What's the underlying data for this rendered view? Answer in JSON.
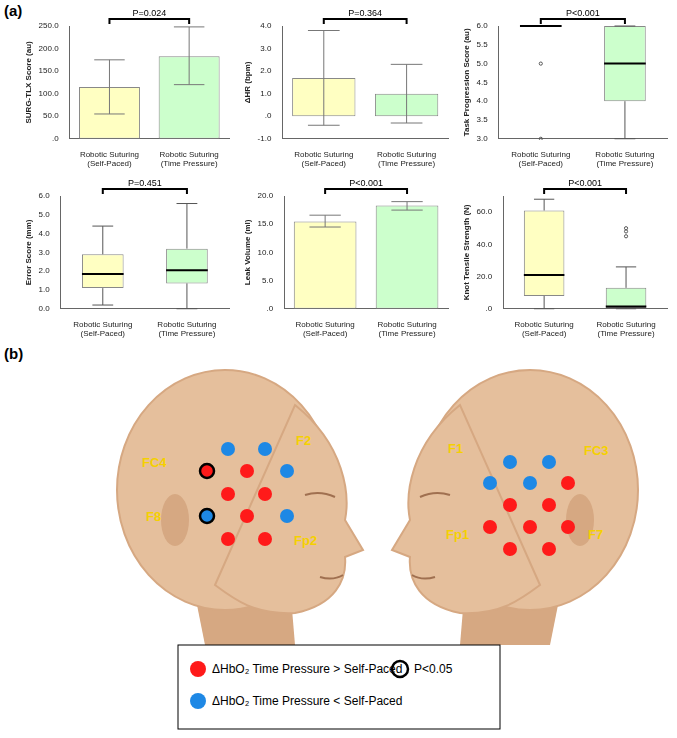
{
  "panel_labels": [
    "(a)",
    "(b)"
  ],
  "chart_data": [
    {
      "type": "bar",
      "y_label": "SURG-TLX Score (au)",
      "categories": [
        [
          "Robotic Suturing",
          "(Self-Paced)"
        ],
        [
          "Robotic Suturing",
          "(Time Pressure)"
        ]
      ],
      "values": [
        115,
        183
      ],
      "error_low": [
        55,
        120
      ],
      "error_high": [
        175,
        248
      ],
      "colors": [
        "#ffffc2",
        "#ccffcc"
      ],
      "ylim": [
        0,
        250
      ],
      "yticks": [
        {
          "value": 0,
          "label": ".0"
        },
        {
          "value": 50,
          "label": "50.0"
        },
        {
          "value": 100,
          "label": "100.0"
        },
        {
          "value": 150,
          "label": "150.0"
        },
        {
          "value": 200,
          "label": "200.0"
        },
        {
          "value": 250,
          "label": "250.0"
        }
      ],
      "annotation": "P=0.024",
      "grid": false
    },
    {
      "type": "bar",
      "y_label": "ΔHR (bpm)",
      "categories": [
        [
          "Robotic Suturing",
          "(Self-Paced)"
        ],
        [
          "Robotic Suturing",
          "(Time Pressure)"
        ]
      ],
      "values": [
        1.7,
        1.0
      ],
      "error_low": [
        -0.4,
        -0.3
      ],
      "error_high": [
        3.8,
        2.3
      ],
      "colors": [
        "#ffffc2",
        "#ccffcc"
      ],
      "ylim": [
        -1,
        4
      ],
      "yticks": [
        {
          "value": -1,
          "label": "-1.0"
        },
        {
          "value": 0,
          "label": ".0"
        },
        {
          "value": 1,
          "label": "1.0"
        },
        {
          "value": 2,
          "label": "2.0"
        },
        {
          "value": 3,
          "label": "3.0"
        },
        {
          "value": 4,
          "label": "4.0"
        }
      ],
      "annotation": "P=0.364",
      "grid": false
    },
    {
      "type": "box",
      "y_label": "Task Progression Score (au)",
      "categories": [
        [
          "Robotic Suturing",
          "(Self-Paced)"
        ],
        [
          "Robotic Suturing",
          "(Time Pressure)"
        ]
      ],
      "boxes": [
        {
          "min": 6,
          "q1": 6,
          "median": 6,
          "q3": 6,
          "max": 6,
          "outliers": [
            5,
            3
          ]
        },
        {
          "min": 3,
          "q1": 4,
          "median": 5,
          "q3": 6,
          "max": 6,
          "outliers": []
        }
      ],
      "colors": [
        "#ffffc2",
        "#ccffcc"
      ],
      "ylim": [
        3,
        6
      ],
      "yticks": [
        {
          "value": 3,
          "label": "3.0"
        },
        {
          "value": 3.5,
          "label": "3.5"
        },
        {
          "value": 4,
          "label": "4.0"
        },
        {
          "value": 4.5,
          "label": "4.5"
        },
        {
          "value": 5,
          "label": "5.0"
        },
        {
          "value": 5.5,
          "label": "5.5"
        },
        {
          "value": 6,
          "label": "6.0"
        }
      ],
      "annotation": "P<0.001",
      "grid": false
    },
    {
      "type": "box",
      "y_label": "Error Score (mm)",
      "categories": [
        [
          "Robotic Suturing",
          "(Self-Paced)"
        ],
        [
          "Robotic Suturing",
          "(Time Pressure)"
        ]
      ],
      "boxes": [
        {
          "min": 0.2,
          "q1": 1.1,
          "median": 1.85,
          "q3": 2.9,
          "max": 4.4,
          "outliers": []
        },
        {
          "min": 0.0,
          "q1": 1.35,
          "median": 2.05,
          "q3": 3.2,
          "max": 5.6,
          "outliers": []
        }
      ],
      "colors": [
        "#ffffc2",
        "#ccffcc"
      ],
      "ylim": [
        0,
        6
      ],
      "yticks": [
        {
          "value": 0,
          "label": "0.0"
        },
        {
          "value": 1,
          "label": "1.0"
        },
        {
          "value": 2,
          "label": "2.0"
        },
        {
          "value": 3,
          "label": "3.0"
        },
        {
          "value": 4,
          "label": "4.0"
        },
        {
          "value": 5,
          "label": "5.0"
        },
        {
          "value": 6,
          "label": "6.0"
        }
      ],
      "annotation": "P=0.451",
      "grid": false
    },
    {
      "type": "bar",
      "y_label": "Leak Volume (ml)",
      "categories": [
        [
          "Robotic Suturing",
          "(Self-Paced)"
        ],
        [
          "Robotic Suturing",
          "(Time Pressure)"
        ]
      ],
      "values": [
        15.5,
        18.3
      ],
      "error_low": [
        14.5,
        17.5
      ],
      "error_high": [
        16.6,
        19.0
      ],
      "colors": [
        "#ffffc2",
        "#ccffcc"
      ],
      "ylim": [
        0,
        20
      ],
      "yticks": [
        {
          "value": 0,
          "label": ".0"
        },
        {
          "value": 5,
          "label": "5.0"
        },
        {
          "value": 10,
          "label": "10.0"
        },
        {
          "value": 15,
          "label": "15.0"
        },
        {
          "value": 20,
          "label": "20.0"
        }
      ],
      "annotation": "P<0.001",
      "grid": false
    },
    {
      "type": "box",
      "y_label": "Knot Tensile Strength (N)",
      "categories": [
        [
          "Robotic Suturing",
          "(Self-Paced)"
        ],
        [
          "Robotic Suturing",
          "(Time Pressure)"
        ]
      ],
      "boxes": [
        {
          "min": 0,
          "q1": 8,
          "median": 21,
          "q3": 61,
          "max": 68,
          "outliers": []
        },
        {
          "min": 0,
          "q1": 0.5,
          "median": 1.5,
          "q3": 13,
          "max": 26,
          "outliers": [
            45,
            48,
            50
          ]
        }
      ],
      "colors": [
        "#ffffc2",
        "#ccffcc"
      ],
      "ylim": [
        0,
        70
      ],
      "yticks": [
        {
          "value": 0,
          "label": ".0"
        },
        {
          "value": 20,
          "label": "20.0"
        },
        {
          "value": 40,
          "label": "40.0"
        },
        {
          "value": 60,
          "label": "60.0"
        }
      ],
      "annotation": "P<0.001",
      "grid": false
    }
  ],
  "diagram": {
    "heads": [
      {
        "labels": [
          "FC4",
          "F2",
          "F8",
          "Fp2"
        ],
        "channels": [
          {
            "color": "#1e88e5",
            "significant": false
          },
          {
            "color": "#1e88e5",
            "significant": false
          },
          {
            "color": "#ff1a1a",
            "significant": true
          },
          {
            "color": "#ff1a1a",
            "significant": false
          },
          {
            "color": "#1e88e5",
            "significant": false
          },
          {
            "color": "#ff1a1a",
            "significant": false
          },
          {
            "color": "#ff1a1a",
            "significant": false
          },
          {
            "color": "#1e88e5",
            "significant": true
          },
          {
            "color": "#ff1a1a",
            "significant": false
          },
          {
            "color": "#1e88e5",
            "significant": false
          },
          {
            "color": "#ff1a1a",
            "significant": false
          },
          {
            "color": "#ff1a1a",
            "significant": false
          }
        ]
      },
      {
        "labels": [
          "F1",
          "FC3",
          "Fp1",
          "F7"
        ],
        "channels": [
          {
            "color": "#1e88e5",
            "significant": false
          },
          {
            "color": "#1e88e5",
            "significant": false
          },
          {
            "color": "#1e88e5",
            "significant": false
          },
          {
            "color": "#1e88e5",
            "significant": false
          },
          {
            "color": "#ff1a1a",
            "significant": false
          },
          {
            "color": "#ff1a1a",
            "significant": false
          },
          {
            "color": "#ff1a1a",
            "significant": false
          },
          {
            "color": "#ff1a1a",
            "significant": false
          },
          {
            "color": "#ff1a1a",
            "significant": false
          },
          {
            "color": "#ff1a1a",
            "significant": false
          },
          {
            "color": "#ff1a1a",
            "significant": false
          },
          {
            "color": "#ff1a1a",
            "significant": false
          }
        ]
      }
    ],
    "legend": [
      {
        "label": "ΔHbO₂ Time Pressure > Self-Paced",
        "color": "#ff1a1a"
      },
      {
        "label": "ΔHbO₂ Time Pressure < Self-Paced",
        "color": "#1e88e5"
      },
      {
        "label": "P<0.05",
        "marker": "ring"
      }
    ]
  }
}
